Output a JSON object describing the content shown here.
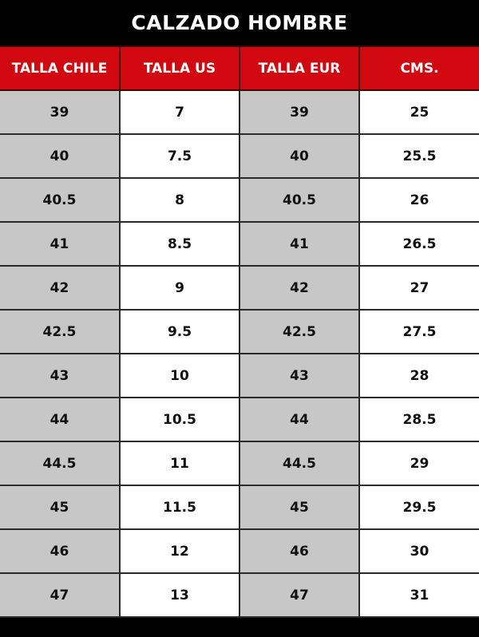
{
  "title": "CALZADO HOMBRE",
  "colors": {
    "header": "#d20810",
    "title_bg": "#000000",
    "shaded": "#c7c7c7"
  },
  "headers": [
    "TALLA CHILE",
    "TALLA US",
    "TALLA EUR",
    "CMS."
  ],
  "rows": [
    [
      "39",
      "7",
      "39",
      "25"
    ],
    [
      "40",
      "7.5",
      "40",
      "25.5"
    ],
    [
      "40.5",
      "8",
      "40.5",
      "26"
    ],
    [
      "41",
      "8.5",
      "41",
      "26.5"
    ],
    [
      "42",
      "9",
      "42",
      "27"
    ],
    [
      "42.5",
      "9.5",
      "42.5",
      "27.5"
    ],
    [
      "43",
      "10",
      "43",
      "28"
    ],
    [
      "44",
      "10.5",
      "44",
      "28.5"
    ],
    [
      "44.5",
      "11",
      "44.5",
      "29"
    ],
    [
      "45",
      "11.5",
      "45",
      "29.5"
    ],
    [
      "46",
      "12",
      "46",
      "30"
    ],
    [
      "47",
      "13",
      "47",
      "31"
    ]
  ]
}
